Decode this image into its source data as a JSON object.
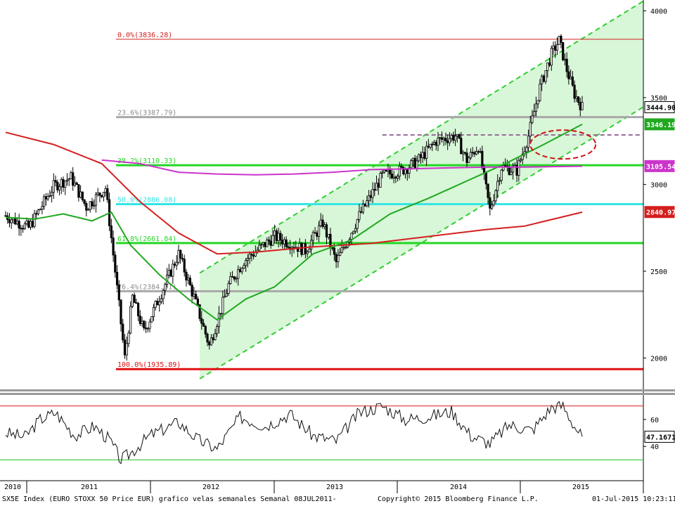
{
  "chart_data": [
    {
      "type": "candlestick",
      "panel": "price",
      "period": "weekly",
      "title": "",
      "y_scale": "linear",
      "ylim": [
        1840,
        4030
      ],
      "y_ticks": [
        "2000",
        "2500",
        "3000",
        "3500",
        "4000"
      ],
      "x_ticks": [
        "2010",
        "2011",
        "2012",
        "2013",
        "2014",
        "2015"
      ],
      "grid": false,
      "candles": {
        "weeks_shown": 300,
        "approx_close_path": [
          {
            "week": 0,
            "close": 2820
          },
          {
            "week": 12,
            "close": 2750
          },
          {
            "week": 25,
            "close": 2990
          },
          {
            "week": 34,
            "close": 3040
          },
          {
            "week": 42,
            "close": 2870
          },
          {
            "week": 52,
            "close": 2980
          },
          {
            "week": 57,
            "close": 2500
          },
          {
            "week": 62,
            "close": 2000
          },
          {
            "week": 66,
            "close": 2350
          },
          {
            "week": 72,
            "close": 2150
          },
          {
            "week": 80,
            "close": 2350
          },
          {
            "week": 90,
            "close": 2600
          },
          {
            "week": 98,
            "close": 2350
          },
          {
            "week": 106,
            "close": 2070
          },
          {
            "week": 116,
            "close": 2420
          },
          {
            "week": 124,
            "close": 2560
          },
          {
            "week": 140,
            "close": 2700
          },
          {
            "week": 156,
            "close": 2620
          },
          {
            "week": 165,
            "close": 2780
          },
          {
            "week": 172,
            "close": 2550
          },
          {
            "week": 184,
            "close": 2820
          },
          {
            "week": 196,
            "close": 3050
          },
          {
            "week": 206,
            "close": 3080
          },
          {
            "week": 214,
            "close": 3130
          },
          {
            "week": 224,
            "close": 3250
          },
          {
            "week": 234,
            "close": 3280
          },
          {
            "week": 240,
            "close": 3140
          },
          {
            "week": 246,
            "close": 3220
          },
          {
            "week": 252,
            "close": 2850
          },
          {
            "week": 258,
            "close": 3100
          },
          {
            "week": 266,
            "close": 3080
          },
          {
            "week": 272,
            "close": 3280
          },
          {
            "week": 278,
            "close": 3560
          },
          {
            "week": 284,
            "close": 3750
          },
          {
            "week": 288,
            "close": 3830
          },
          {
            "week": 292,
            "close": 3660
          },
          {
            "week": 296,
            "close": 3520
          },
          {
            "week": 300,
            "close": 3445
          }
        ]
      },
      "moving_averages": [
        {
          "color": "#d41f1f",
          "points": [
            [
              0,
              3300
            ],
            [
              25,
              3230
            ],
            [
              50,
              3120
            ],
            [
              70,
              2900
            ],
            [
              90,
              2720
            ],
            [
              110,
              2600
            ],
            [
              130,
              2610
            ],
            [
              160,
              2640
            ],
            [
              190,
              2660
            ],
            [
              220,
              2700
            ],
            [
              250,
              2740
            ],
            [
              270,
              2760
            ],
            [
              300,
              2840
            ]
          ]
        },
        {
          "color": "#21a821",
          "points": [
            [
              0,
              2810
            ],
            [
              15,
              2800
            ],
            [
              30,
              2830
            ],
            [
              45,
              2790
            ],
            [
              55,
              2840
            ],
            [
              65,
              2650
            ],
            [
              80,
              2480
            ],
            [
              95,
              2340
            ],
            [
              110,
              2220
            ],
            [
              125,
              2340
            ],
            [
              140,
              2410
            ],
            [
              160,
              2600
            ],
            [
              180,
              2680
            ],
            [
              200,
              2830
            ],
            [
              220,
              2920
            ],
            [
              240,
              3020
            ],
            [
              260,
              3120
            ],
            [
              280,
              3230
            ],
            [
              300,
              3346
            ]
          ]
        },
        {
          "color": "#cc33cc",
          "points": [
            [
              50,
              3140
            ],
            [
              70,
              3120
            ],
            [
              90,
              3070
            ],
            [
              110,
              3060
            ],
            [
              130,
              3055
            ],
            [
              150,
              3060
            ],
            [
              170,
              3070
            ],
            [
              190,
              3085
            ],
            [
              210,
              3090
            ],
            [
              230,
              3095
            ],
            [
              250,
              3100
            ],
            [
              270,
              3100
            ],
            [
              300,
              3105
            ]
          ]
        }
      ],
      "fibonacci": [
        {
          "label": "0.0%(3836.28)",
          "value": 3836.28,
          "color": "#d41f1f"
        },
        {
          "label": "23.6%(3387.79)",
          "value": 3387.79,
          "color": "#a8a8a8"
        },
        {
          "label": "38.2%(3110.33)",
          "value": 3110.33,
          "color": "#25d625"
        },
        {
          "label": "50.0%(2886.08)",
          "value": 2886.08,
          "color": "#33e6e6"
        },
        {
          "label": "61.8%(2661.84)",
          "value": 2661.84,
          "color": "#25d625"
        },
        {
          "label": "76.4%(2384.61)",
          "value": 2384.61,
          "color": "#a8a8a8"
        },
        {
          "label": "100.0%(1935.89)",
          "value": 1935.89,
          "color": "#e01010"
        }
      ],
      "price_tags": [
        {
          "label": "3444.90",
          "value": 3444.9,
          "bg": "#ffffff",
          "fg": "#000000",
          "border": "#000000"
        },
        {
          "label": "3346.19",
          "value": 3346.19,
          "bg": "#21a821",
          "fg": "#ffffff",
          "border": "#21a821"
        },
        {
          "label": "3105.54",
          "value": 3105.54,
          "bg": "#cc33cc",
          "fg": "#ffffff",
          "border": "#cc33cc"
        },
        {
          "label": "2840.97",
          "value": 2840.97,
          "bg": "#d41f1f",
          "fg": "#ffffff",
          "border": "#d41f1f"
        }
      ],
      "annotations": {
        "trend_channel": {
          "color": "#33cc33",
          "fill": "#d8f7d8",
          "style": "dashed",
          "lower_start": [
            101,
            1880
          ],
          "lower_end": [
            300,
            3230
          ],
          "offset": 610
        },
        "resistance_line": {
          "color": "#9a6b9a",
          "style": "dashed",
          "value": 3285,
          "from_week": 196,
          "to_week": 300
        },
        "highlight_ellipse": {
          "color": "#cc1111",
          "style": "dashed",
          "center": [
            290,
            3230
          ],
          "rx_weeks": 17,
          "ry_value": 83
        }
      }
    },
    {
      "type": "line",
      "panel": "oscillator",
      "ylim": [
        25,
        75
      ],
      "y_ticks": [
        "40",
        "60"
      ],
      "upper_level": 70,
      "lower_level": 30,
      "current_value_label": "47.1671",
      "current_value": 47.17,
      "approx_path": [
        {
          "week": 0,
          "value": 50
        },
        {
          "week": 10,
          "value": 47
        },
        {
          "week": 18,
          "value": 60
        },
        {
          "week": 26,
          "value": 65
        },
        {
          "week": 36,
          "value": 48
        },
        {
          "week": 46,
          "value": 55
        },
        {
          "week": 54,
          "value": 45
        },
        {
          "week": 60,
          "value": 30
        },
        {
          "week": 65,
          "value": 35
        },
        {
          "week": 75,
          "value": 48
        },
        {
          "week": 90,
          "value": 58
        },
        {
          "week": 100,
          "value": 45
        },
        {
          "week": 110,
          "value": 38
        },
        {
          "week": 122,
          "value": 62
        },
        {
          "week": 135,
          "value": 55
        },
        {
          "week": 148,
          "value": 64
        },
        {
          "week": 160,
          "value": 48
        },
        {
          "week": 172,
          "value": 44
        },
        {
          "week": 184,
          "value": 65
        },
        {
          "week": 196,
          "value": 70
        },
        {
          "week": 208,
          "value": 60
        },
        {
          "week": 220,
          "value": 62
        },
        {
          "week": 232,
          "value": 66
        },
        {
          "week": 242,
          "value": 48
        },
        {
          "week": 252,
          "value": 42
        },
        {
          "week": 262,
          "value": 56
        },
        {
          "week": 274,
          "value": 52
        },
        {
          "week": 284,
          "value": 69
        },
        {
          "week": 290,
          "value": 70
        },
        {
          "week": 296,
          "value": 55
        },
        {
          "week": 300,
          "value": 47
        }
      ]
    }
  ],
  "footer": {
    "left": "SX5E Index (EURO STOXX 50 Price EUR) grafico velas semanales  Semanal 08JUL2011-",
    "center": "Copyright© 2015 Bloomberg Finance L.P.",
    "right": "01-Jul-2015 10:23:11"
  }
}
